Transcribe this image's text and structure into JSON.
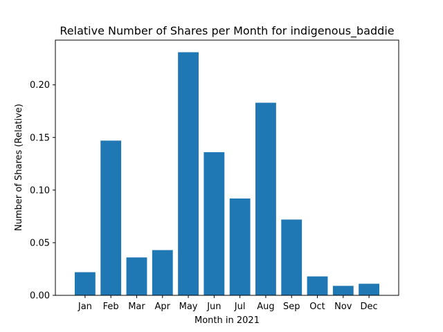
{
  "chart_data": {
    "type": "bar",
    "title": "Relative Number of Shares per Month for indigenous_baddie",
    "xlabel": "Month in 2021",
    "ylabel": "Number of Shares (Relative)",
    "categories": [
      "Jan",
      "Feb",
      "Mar",
      "Apr",
      "May",
      "Jun",
      "Jul",
      "Aug",
      "Sep",
      "Oct",
      "Nov",
      "Dec"
    ],
    "values": [
      0.022,
      0.147,
      0.036,
      0.043,
      0.231,
      0.136,
      0.092,
      0.183,
      0.072,
      0.018,
      0.009,
      0.011
    ],
    "ylim": [
      0,
      0.2425
    ],
    "yticks": [
      0.0,
      0.05,
      0.1,
      0.15,
      0.2
    ],
    "ytick_labels": [
      "0.00",
      "0.05",
      "0.10",
      "0.15",
      "0.20"
    ],
    "bar_color": "#1f77b4",
    "grid": false,
    "legend": false
  }
}
